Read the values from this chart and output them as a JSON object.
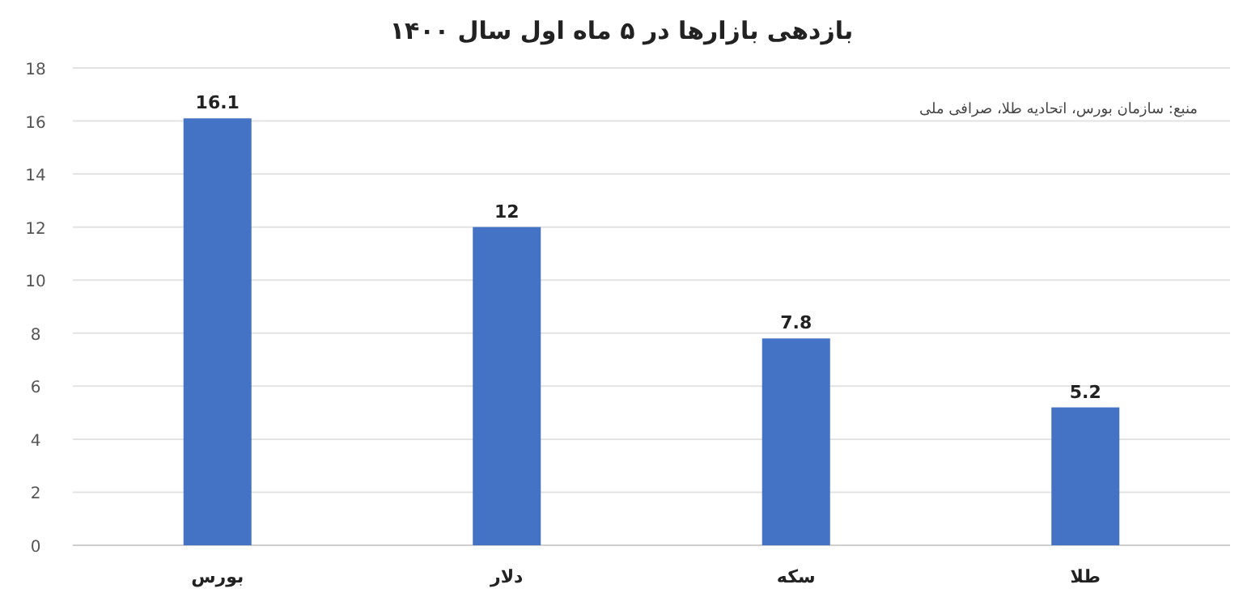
{
  "chart_data": {
    "type": "bar",
    "title": "بازدهی بازارها در ۵ ماه اول سال ۱۴۰۰",
    "categories": [
      "بورس",
      "دلار",
      "سکه",
      "طلا"
    ],
    "values": [
      16.1,
      12,
      7.8,
      5.2
    ],
    "color": "#4472c4",
    "ylim": [
      0,
      18
    ],
    "yticks": [
      0,
      2,
      4,
      6,
      8,
      10,
      12,
      14,
      16,
      18
    ],
    "grid": "y",
    "data_labels": true,
    "annotations": [
      "منبع: سازمان بورس، اتحادیه طلا، صرافی ملی"
    ]
  }
}
